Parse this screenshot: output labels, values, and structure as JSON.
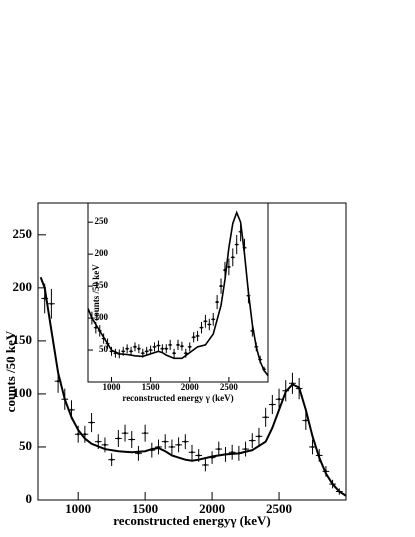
{
  "chart_data": [
    {
      "type": "scatter",
      "x_label": "reconstructed energyγ (keV)",
      "y_label": "counts /50 keV",
      "xlim": [
        700,
        3000
      ],
      "ylim": [
        0,
        280
      ],
      "xticks": [
        1000,
        1500,
        2000,
        2500
      ],
      "yticks": [
        0,
        50,
        100,
        150,
        200,
        250
      ],
      "series": [
        {
          "kind": "points",
          "color": "#000000",
          "x_error": 25,
          "x": [
            750,
            800,
            850,
            900,
            950,
            1000,
            1050,
            1100,
            1150,
            1200,
            1250,
            1300,
            1350,
            1400,
            1450,
            1500,
            1550,
            1600,
            1650,
            1700,
            1750,
            1800,
            1850,
            1900,
            1950,
            2000,
            2050,
            2100,
            2150,
            2200,
            2250,
            2300,
            2350,
            2400,
            2450,
            2500,
            2550,
            2600,
            2650,
            2700,
            2750,
            2800,
            2850,
            2900,
            2950
          ],
          "values": [
            190,
            185,
            112,
            95,
            85,
            62,
            62,
            73,
            55,
            52,
            38,
            58,
            63,
            57,
            44,
            63,
            47,
            50,
            55,
            50,
            52,
            55,
            45,
            42,
            33,
            40,
            48,
            43,
            45,
            44,
            48,
            56,
            60,
            78,
            90,
            95,
            103,
            110,
            105,
            75,
            50,
            42,
            27,
            15,
            8
          ],
          "errors": [
            14,
            14,
            11,
            10,
            9,
            8,
            8,
            9,
            7,
            7,
            6,
            8,
            8,
            8,
            7,
            8,
            7,
            7,
            7,
            7,
            7,
            7,
            7,
            6,
            6,
            6,
            7,
            7,
            7,
            7,
            7,
            7,
            8,
            9,
            9,
            10,
            10,
            10,
            10,
            9,
            7,
            6,
            5,
            4,
            3
          ]
        },
        {
          "kind": "line",
          "color": "#000000",
          "x": [
            720,
            750,
            800,
            850,
            900,
            950,
            1000,
            1050,
            1100,
            1200,
            1300,
            1400,
            1500,
            1550,
            1600,
            1650,
            1700,
            1800,
            1850,
            1900,
            2000,
            2100,
            2200,
            2300,
            2400,
            2450,
            2500,
            2550,
            2600,
            2650,
            2700,
            2750,
            2800,
            2850,
            2900,
            2950,
            3000
          ],
          "values": [
            210,
            200,
            160,
            120,
            95,
            78,
            66,
            58,
            53,
            48,
            46,
            45,
            46,
            48,
            49,
            46,
            42,
            38,
            37,
            38,
            41,
            43,
            44,
            47,
            55,
            68,
            85,
            102,
            109,
            106,
            85,
            60,
            40,
            25,
            15,
            8,
            4
          ]
        }
      ]
    },
    {
      "type": "scatter",
      "x_label": "reconstructed energy  γ (keV)",
      "y_label": "counts /50 keV",
      "xlim": [
        700,
        3000
      ],
      "ylim": [
        0,
        280
      ],
      "xticks": [
        1000,
        1500,
        2000,
        2500
      ],
      "yticks": [
        50,
        100,
        150,
        200,
        250
      ],
      "series": [
        {
          "kind": "points",
          "color": "#000000",
          "x_error": 25,
          "x": [
            750,
            800,
            850,
            900,
            950,
            1000,
            1050,
            1100,
            1150,
            1200,
            1250,
            1300,
            1350,
            1400,
            1450,
            1500,
            1550,
            1600,
            1650,
            1700,
            1750,
            1800,
            1850,
            1900,
            1950,
            2000,
            2050,
            2100,
            2150,
            2200,
            2250,
            2300,
            2350,
            2400,
            2450,
            2500,
            2550,
            2600,
            2650,
            2700,
            2750,
            2800,
            2850,
            2900,
            2950
          ],
          "values": [
            100,
            85,
            80,
            68,
            60,
            48,
            45,
            44,
            48,
            52,
            48,
            55,
            52,
            45,
            48,
            50,
            55,
            57,
            52,
            52,
            58,
            45,
            58,
            56,
            45,
            55,
            70,
            72,
            85,
            95,
            90,
            98,
            125,
            150,
            175,
            180,
            195,
            215,
            235,
            210,
            135,
            80,
            55,
            35,
            20
          ],
          "errors": [
            10,
            9,
            9,
            8,
            8,
            7,
            7,
            7,
            7,
            7,
            7,
            7,
            7,
            7,
            7,
            7,
            7,
            8,
            7,
            7,
            8,
            7,
            8,
            7,
            7,
            7,
            8,
            8,
            9,
            10,
            9,
            10,
            11,
            12,
            13,
            13,
            14,
            15,
            15,
            14,
            12,
            9,
            7,
            6,
            4
          ]
        },
        {
          "kind": "line",
          "color": "#000000",
          "x": [
            700,
            750,
            850,
            950,
            1000,
            1100,
            1200,
            1300,
            1400,
            1500,
            1600,
            1650,
            1700,
            1800,
            1900,
            2000,
            2100,
            2200,
            2300,
            2400,
            2450,
            2500,
            2550,
            2600,
            2650,
            2700,
            2750,
            2800,
            2850,
            2900,
            2950,
            3000
          ],
          "values": [
            115,
            100,
            80,
            60,
            50,
            44,
            43,
            41,
            40,
            44,
            48,
            46,
            42,
            37,
            37,
            46,
            55,
            58,
            75,
            120,
            160,
            210,
            248,
            265,
            250,
            200,
            140,
            90,
            55,
            32,
            18,
            10
          ]
        }
      ]
    }
  ]
}
